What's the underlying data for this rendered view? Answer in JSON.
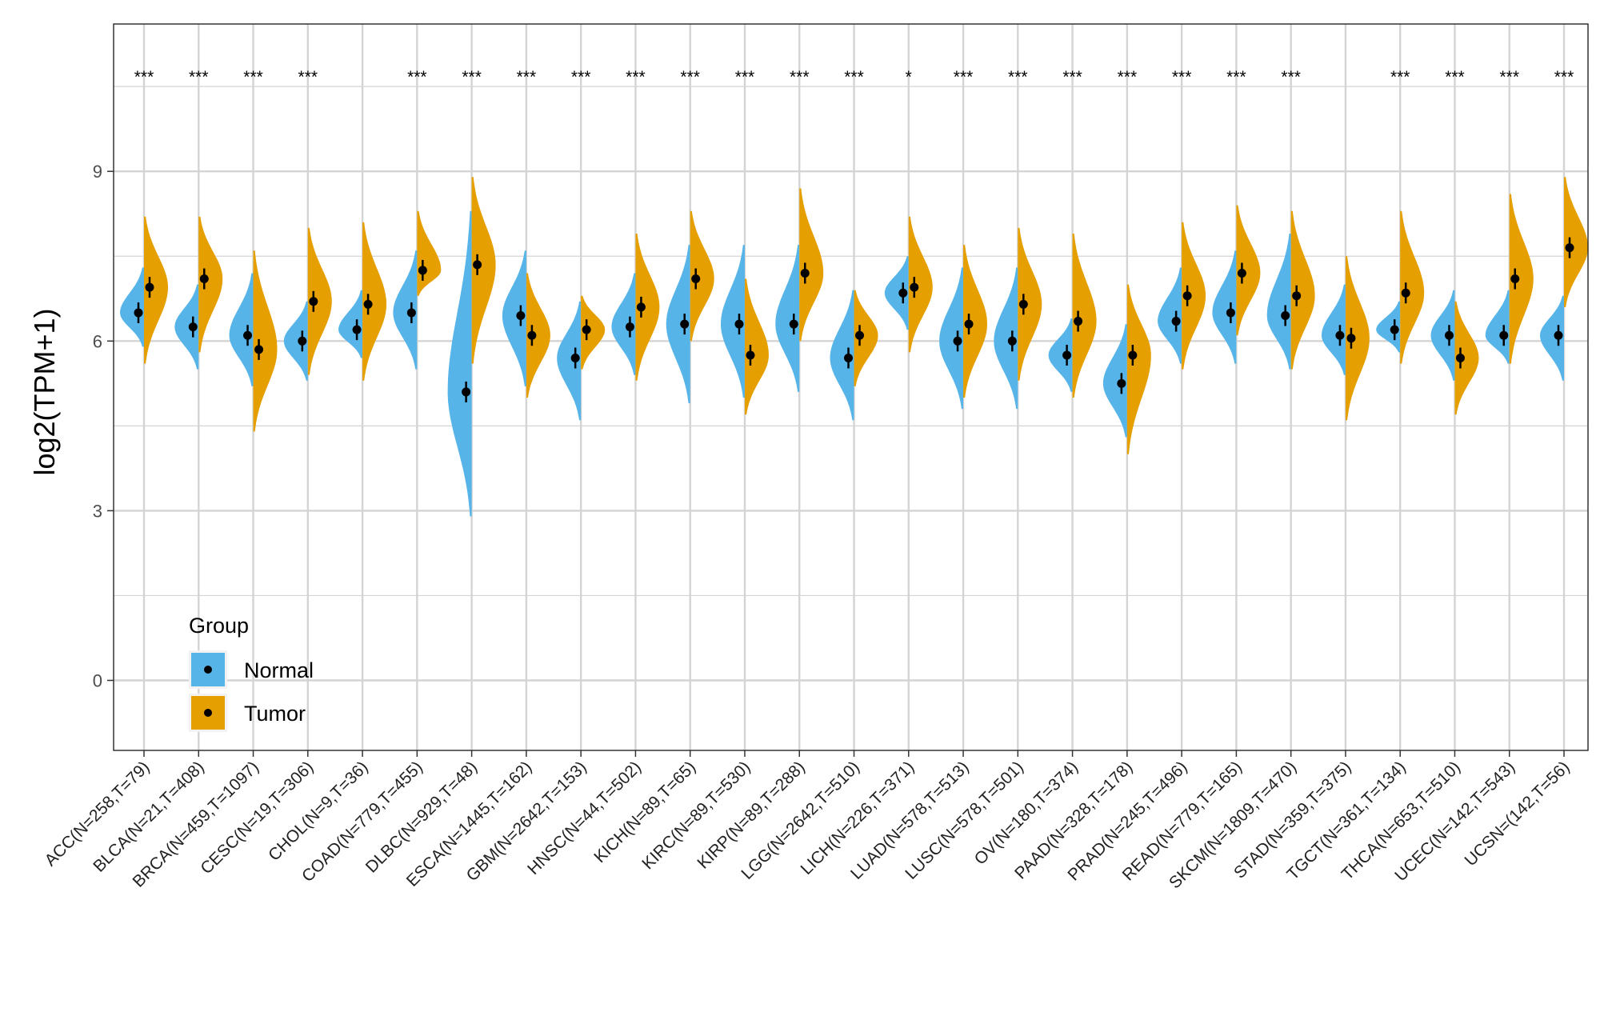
{
  "chart_data": {
    "type": "split-violin",
    "title": "",
    "xlabel": "",
    "ylabel": "log2(TPM+1)",
    "ylim": [
      -1.3,
      11.6
    ],
    "yticks": [
      0,
      3,
      6,
      9
    ],
    "grid": true,
    "legend": {
      "title": "Group",
      "position": "bottom-left inside",
      "entries": [
        {
          "label": "Normal",
          "color": "#56B4E9"
        },
        {
          "label": "Tumor",
          "color": "#E69F00"
        }
      ]
    },
    "categories": [
      "ACC(N=258,T=79)",
      "BLCA(N=21,T=408)",
      "BRCA(N=459,T=1097)",
      "CESC(N=19,T=306)",
      "CHOL(N=9,T=36)",
      "COAD(N=779,T=455)",
      "DLBC(N=929,T=48)",
      "ESCA(N=1445,T=162)",
      "GBM(N=2642,T=153)",
      "HNSC(N=44,T=502)",
      "KICH(N=89,T=65)",
      "KIRC(N=89,T=530)",
      "KIRP(N=89,T=288)",
      "LGG(N=2642,T=510)",
      "LICH(N=226,T=371)",
      "LUAD(N=578,T=513)",
      "LUSC(N=578,T=501)",
      "OV(N=180,T=374)",
      "PAAD(N=328,T=178)",
      "PRAD(N=245,T=496)",
      "READ(N=779,T=165)",
      "SKCM(N=1809,T=470)",
      "STAD(N=359,T=375)",
      "TGCT(N=361,T=134)",
      "THCA(N=653,T=510)",
      "UCEC(N=142,T=543)",
      "UCSN=(142,T=56)"
    ],
    "significance": [
      "***",
      "***",
      "***",
      "***",
      "",
      "***",
      "***",
      "***",
      "***",
      "***",
      "***",
      "***",
      "***",
      "***",
      "*",
      "***",
      "***",
      "***",
      "***",
      "***",
      "***",
      "***",
      "",
      "***",
      "***",
      "***",
      "***"
    ],
    "series": [
      {
        "name": "Normal",
        "color": "#56B4E9",
        "median": [
          6.5,
          6.25,
          6.1,
          6.0,
          6.2,
          6.5,
          5.1,
          6.45,
          5.7,
          6.25,
          6.3,
          6.3,
          6.3,
          5.7,
          6.85,
          6.0,
          6.0,
          5.75,
          5.25,
          6.35,
          6.5,
          6.45,
          6.1,
          6.2,
          6.1,
          6.1,
          6.1
        ],
        "min": [
          5.9,
          5.5,
          5.2,
          5.3,
          5.7,
          5.5,
          2.9,
          5.2,
          4.6,
          5.4,
          4.9,
          5.0,
          5.1,
          4.6,
          6.2,
          4.8,
          4.8,
          5.1,
          4.3,
          5.6,
          5.6,
          5.5,
          5.4,
          5.8,
          5.3,
          5.6,
          5.3
        ],
        "max": [
          7.3,
          7.0,
          7.2,
          6.7,
          6.9,
          7.6,
          8.3,
          7.6,
          6.7,
          7.2,
          7.7,
          7.7,
          7.7,
          6.9,
          7.5,
          7.3,
          7.3,
          6.4,
          6.3,
          7.3,
          7.6,
          7.9,
          7.0,
          6.7,
          6.9,
          6.9,
          6.8
        ]
      },
      {
        "name": "Tumor",
        "color": "#E69F00",
        "median": [
          6.95,
          7.1,
          5.85,
          6.7,
          6.65,
          7.25,
          7.35,
          6.1,
          6.2,
          6.6,
          7.1,
          5.75,
          7.2,
          6.1,
          6.95,
          6.3,
          6.65,
          6.35,
          5.75,
          6.8,
          7.2,
          6.8,
          6.05,
          6.85,
          5.7,
          7.1,
          7.65
        ],
        "min": [
          5.6,
          5.8,
          4.4,
          5.4,
          5.3,
          6.8,
          5.6,
          5.0,
          5.5,
          5.3,
          6.0,
          4.7,
          6.0,
          5.2,
          5.8,
          5.0,
          5.3,
          5.0,
          4.0,
          5.5,
          6.1,
          5.5,
          4.6,
          5.6,
          4.7,
          5.6,
          6.6
        ],
        "max": [
          8.2,
          8.2,
          7.6,
          8.0,
          8.1,
          8.3,
          8.9,
          7.2,
          6.8,
          7.9,
          8.3,
          7.1,
          8.7,
          6.9,
          8.2,
          7.7,
          8.0,
          7.9,
          7.0,
          8.1,
          8.4,
          8.3,
          7.5,
          8.3,
          6.7,
          8.6,
          8.9
        ]
      }
    ]
  }
}
